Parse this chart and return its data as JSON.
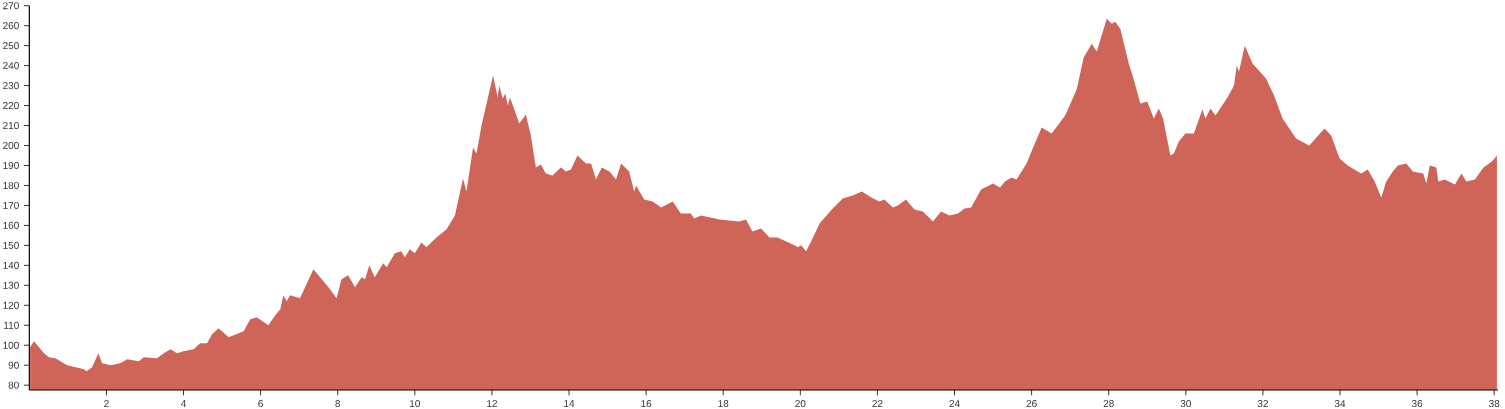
{
  "chart_data": {
    "type": "area",
    "color": "#cf6459",
    "xlim": [
      0,
      38.1
    ],
    "ylim": [
      77.6,
      270
    ],
    "xticks": [
      2,
      4,
      6,
      8,
      10,
      12,
      14,
      16,
      18,
      20,
      22,
      24,
      26,
      28,
      30,
      32,
      34,
      36,
      38
    ],
    "yticks": [
      80,
      90,
      100,
      110,
      120,
      130,
      140,
      150,
      160,
      170,
      180,
      190,
      200,
      210,
      220,
      230,
      240,
      250,
      260,
      270
    ],
    "x": [
      0.02,
      0.12,
      0.38,
      0.51,
      0.68,
      0.98,
      1.42,
      1.48,
      1.63,
      1.79,
      1.89,
      2.11,
      2.36,
      2.54,
      2.84,
      2.97,
      3.31,
      3.49,
      3.66,
      3.83,
      4.0,
      4.26,
      4.43,
      4.61,
      4.74,
      4.91,
      5.17,
      5.56,
      5.73,
      5.9,
      6.2,
      6.38,
      6.51,
      6.59,
      6.68,
      6.76,
      6.94,
      7.02,
      7.37,
      7.76,
      7.97,
      8.1,
      8.27,
      8.45,
      8.62,
      8.71,
      8.82,
      8.96,
      9.18,
      9.27,
      9.48,
      9.65,
      9.74,
      9.87,
      10.0,
      10.17,
      10.3,
      10.56,
      10.82,
      11.04,
      11.25,
      11.34,
      11.51,
      11.6,
      11.73,
      12.03,
      12.15,
      12.19,
      12.28,
      12.35,
      12.41,
      12.47,
      12.71,
      12.88,
      13.01,
      13.14,
      13.27,
      13.4,
      13.57,
      13.79,
      13.92,
      14.05,
      14.22,
      14.44,
      14.57,
      14.7,
      14.85,
      15.05,
      15.22,
      15.35,
      15.56,
      15.69,
      15.74,
      15.95,
      16.17,
      16.39,
      16.69,
      16.9,
      17.16,
      17.25,
      17.42,
      17.9,
      18.42,
      18.59,
      18.76,
      18.98,
      19.2,
      19.41,
      19.85,
      19.93,
      20.02,
      20.15,
      20.28,
      20.5,
      20.84,
      21.1,
      21.36,
      21.6,
      21.84,
      22.05,
      22.18,
      22.4,
      22.53,
      22.74,
      22.96,
      23.18,
      23.44,
      23.65,
      23.87,
      24.09,
      24.26,
      24.43,
      24.69,
      25.0,
      25.18,
      25.31,
      25.48,
      25.61,
      25.87,
      26.04,
      26.26,
      26.52,
      26.87,
      27.17,
      27.35,
      27.56,
      27.69,
      27.95,
      28.08,
      28.17,
      28.3,
      28.52,
      28.65,
      28.82,
      29.0,
      29.17,
      29.3,
      29.41,
      29.6,
      29.69,
      29.82,
      29.99,
      30.21,
      30.43,
      30.51,
      30.64,
      30.77,
      31.08,
      31.25,
      31.32,
      31.38,
      31.53,
      31.73,
      32.08,
      32.29,
      32.51,
      32.86,
      33.2,
      33.6,
      33.77,
      33.99,
      34.2,
      34.55,
      34.72,
      34.9,
      35.07,
      35.2,
      35.37,
      35.5,
      35.72,
      35.89,
      36.16,
      36.24,
      36.33,
      36.5,
      36.55,
      36.72,
      36.98,
      37.15,
      37.28,
      37.5,
      37.72,
      37.94,
      38.07
    ],
    "values": [
      99,
      102,
      96,
      94,
      93.5,
      90,
      88,
      87,
      89,
      96,
      91,
      90,
      91,
      93,
      92,
      94,
      93.5,
      96,
      98,
      96,
      97,
      98,
      101,
      101,
      105.5,
      108.5,
      104,
      107,
      113,
      114,
      110,
      115,
      118,
      125,
      122,
      125,
      124,
      123.5,
      138,
      129,
      123.5,
      133,
      135,
      129,
      134,
      133,
      140,
      134,
      141,
      139,
      146,
      147,
      144,
      148,
      146,
      151.5,
      149,
      154,
      158,
      165,
      183.5,
      177,
      199,
      196,
      210,
      235,
      224,
      230,
      223.5,
      226,
      220,
      224,
      211,
      215.5,
      205,
      189,
      190.5,
      186,
      185,
      189,
      187,
      188,
      195,
      191,
      191,
      183,
      189,
      187,
      183,
      191,
      187,
      177,
      180,
      173,
      172,
      169,
      172,
      166,
      166,
      163.5,
      165,
      163,
      162,
      163,
      157,
      158.5,
      154,
      154,
      150,
      149,
      150,
      147,
      152,
      161,
      168.5,
      173.5,
      175,
      177,
      174,
      172,
      173,
      169,
      170,
      173,
      168,
      167,
      162,
      167,
      165,
      166,
      168.5,
      169,
      178,
      181,
      179,
      182,
      184,
      183,
      191,
      199,
      209,
      206,
      215,
      228,
      244,
      251,
      247,
      263.5,
      261,
      262,
      258.5,
      241,
      233,
      221,
      222,
      213.5,
      218.5,
      213.5,
      195,
      196,
      202,
      206,
      206,
      218,
      213.5,
      218.5,
      215,
      224,
      230,
      240,
      237,
      250,
      241,
      233.5,
      225,
      213.5,
      203.5,
      200,
      208.5,
      205,
      193.5,
      190,
      186,
      188,
      182,
      174,
      182,
      187,
      190,
      191,
      187,
      186,
      181,
      190,
      189,
      182,
      183,
      180.5,
      186,
      182,
      183,
      189,
      192,
      195
    ]
  }
}
